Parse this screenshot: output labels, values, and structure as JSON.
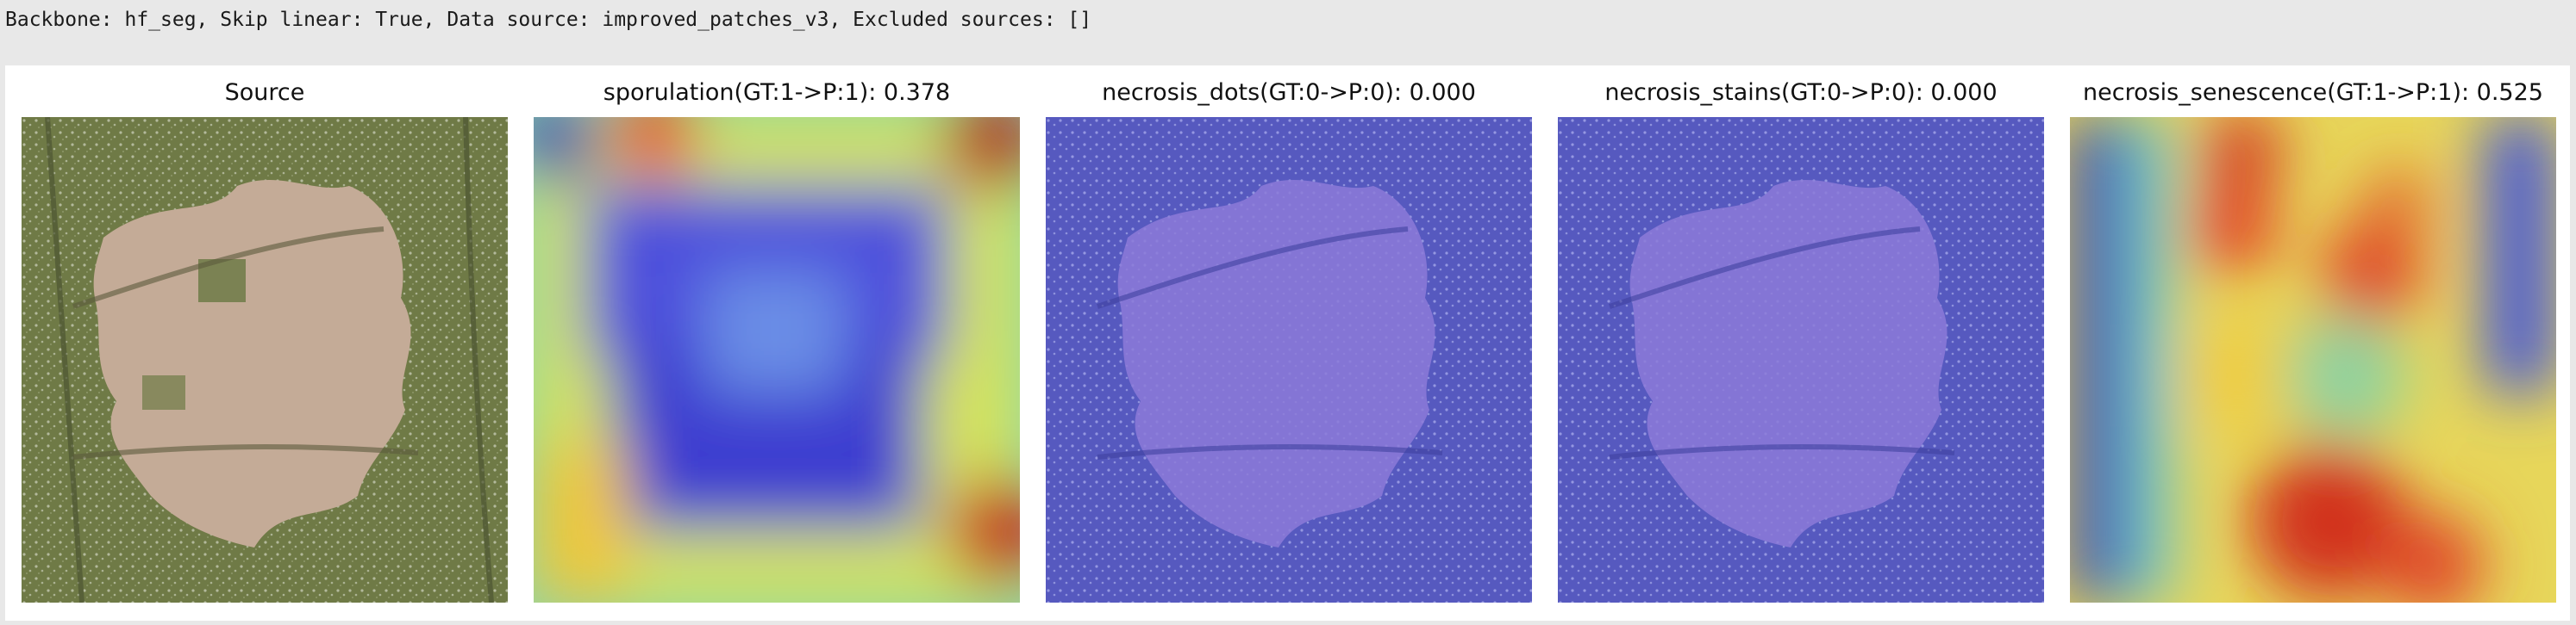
{
  "header": {
    "text": "Backbone: hf_seg, Skip linear: True, Data source: improved_patches_v3, Excluded sources: []"
  },
  "panels": [
    {
      "title": "Source"
    },
    {
      "title": "sporulation(GT:1->P:1): 0.378"
    },
    {
      "title": "necrosis_dots(GT:0->P:0): 0.000"
    },
    {
      "title": "necrosis_stains(GT:0->P:0): 0.000"
    },
    {
      "title": "necrosis_senescence(GT:1->P:1): 0.525"
    }
  ],
  "colors": {
    "page_background": "#e8e8e8",
    "figure_background": "#ffffff",
    "leaf_green": "#6e7a45",
    "lesion_tan": "#c3aa96",
    "overlay_blue": "#5a5fc8"
  }
}
